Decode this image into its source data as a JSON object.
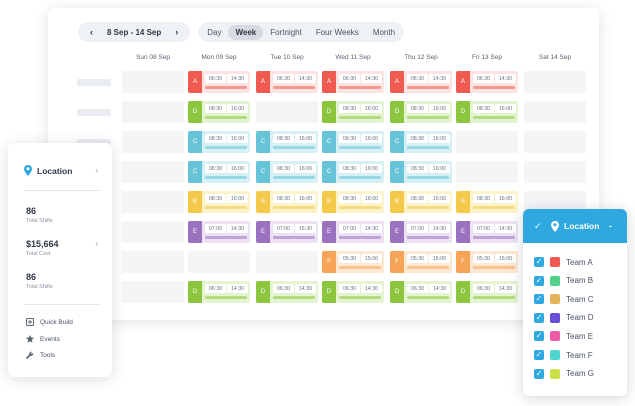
{
  "toolbar": {
    "prev_icon": "chevron-left-icon",
    "next_icon": "chevron-right-icon",
    "range": "8 Sep - 14 Sep",
    "views": [
      "Day",
      "Week",
      "Fortnight",
      "Four Weeks",
      "Month"
    ],
    "active_view": "Week"
  },
  "days": [
    "Sun 08 Sep",
    "Mon 09 Sep",
    "Tue 10 Sep",
    "Wed 11 Sep",
    "Thu 12 Sep",
    "Fri 13 Sep",
    "Sat 14 Sep"
  ],
  "teams": {
    "A": {
      "color": "#ef5b51",
      "light": "#fde3e1"
    },
    "B": {
      "color": "#f4c94a",
      "light": "#fdf3c8"
    },
    "C": {
      "color": "#66c3d8",
      "light": "#d6f0f6"
    },
    "D": {
      "color": "#8cc63f",
      "light": "#e4f3d0"
    },
    "E": {
      "color": "#9b72bf",
      "light": "#ece2f4"
    },
    "F": {
      "color": "#f6a455",
      "light": "#fde8d3"
    }
  },
  "rows": [
    [
      null,
      {
        "team": "A",
        "start": "06:30",
        "end": "14:30"
      },
      {
        "team": "A",
        "start": "06:30",
        "end": "14:30"
      },
      {
        "team": "A",
        "start": "06:30",
        "end": "14:30"
      },
      {
        "team": "A",
        "start": "06:30",
        "end": "14:30"
      },
      {
        "team": "A",
        "start": "06:30",
        "end": "14:30"
      },
      null
    ],
    [
      null,
      {
        "team": "D",
        "start": "08:30",
        "end": "16:00"
      },
      null,
      {
        "team": "D",
        "start": "08:30",
        "end": "16:00"
      },
      {
        "team": "D",
        "start": "08:30",
        "end": "16:00"
      },
      {
        "team": "D",
        "start": "08:30",
        "end": "16:00"
      },
      null
    ],
    [
      null,
      {
        "team": "C",
        "start": "08:30",
        "end": "16:00"
      },
      {
        "team": "C",
        "start": "08:30",
        "end": "16:00"
      },
      {
        "team": "C",
        "start": "08:30",
        "end": "16:00"
      },
      {
        "team": "C",
        "start": "08:30",
        "end": "16:00"
      },
      null,
      null
    ],
    [
      null,
      {
        "team": "C",
        "start": "08:30",
        "end": "16:00"
      },
      {
        "team": "C",
        "start": "08:30",
        "end": "16:00"
      },
      {
        "team": "C",
        "start": "08:30",
        "end": "16:00"
      },
      {
        "team": "C",
        "start": "08:30",
        "end": "16:00"
      },
      null,
      null
    ],
    [
      null,
      {
        "team": "B",
        "start": "08:30",
        "end": "16:00"
      },
      {
        "team": "B",
        "start": "08:30",
        "end": "16:00"
      },
      {
        "team": "B",
        "start": "08:30",
        "end": "16:00"
      },
      {
        "team": "B",
        "start": "08:30",
        "end": "16:00"
      },
      {
        "team": "B",
        "start": "08:30",
        "end": "16:00"
      },
      null
    ],
    [
      null,
      {
        "team": "E",
        "start": "07:00",
        "end": "14:30"
      },
      {
        "team": "E",
        "start": "07:00",
        "end": "15:30"
      },
      {
        "team": "E",
        "start": "07:00",
        "end": "14:30"
      },
      {
        "team": "E",
        "start": "07:00",
        "end": "14:30"
      },
      {
        "team": "E",
        "start": "07:00",
        "end": "14:30"
      },
      null
    ],
    [
      null,
      null,
      null,
      {
        "team": "F",
        "start": "05:30",
        "end": "15:00"
      },
      {
        "team": "F",
        "start": "05:30",
        "end": "15:00"
      },
      {
        "team": "F",
        "start": "05:30",
        "end": "15:00"
      },
      null
    ],
    [
      null,
      {
        "team": "D",
        "start": "06:30",
        "end": "14:30"
      },
      {
        "team": "D",
        "start": "06:30",
        "end": "14:30"
      },
      {
        "team": "D",
        "start": "06:30",
        "end": "14:30"
      },
      {
        "team": "D",
        "start": "06:30",
        "end": "14:30"
      },
      {
        "team": "D",
        "start": "06:30",
        "end": "14:30"
      },
      null
    ]
  ],
  "sidebar": {
    "location_label": "Location",
    "location_icon": "location-pin-icon",
    "stats": [
      {
        "value": "86",
        "label": "Total Shifts"
      },
      {
        "value": "$15,664",
        "label": "Total Cost"
      },
      {
        "value": "86",
        "label": "Total Shifts"
      }
    ],
    "tools": [
      {
        "label": "Quick Build",
        "icon": "quick-build-icon"
      },
      {
        "label": "Events",
        "icon": "star-icon"
      },
      {
        "label": "Tools",
        "icon": "wrench-icon"
      }
    ]
  },
  "team_filter": {
    "title": "Location",
    "items": [
      {
        "label": "Team A",
        "color": "#ef5b51",
        "checked": true
      },
      {
        "label": "Team B",
        "color": "#4fd18b",
        "checked": true
      },
      {
        "label": "Team C",
        "color": "#e3b45a",
        "checked": true
      },
      {
        "label": "Team D",
        "color": "#6a4fd6",
        "checked": true
      },
      {
        "label": "Team E",
        "color": "#ee5da8",
        "checked": true
      },
      {
        "label": "Team F",
        "color": "#4fd6d0",
        "checked": true
      },
      {
        "label": "Team G",
        "color": "#cde048",
        "checked": true
      }
    ]
  }
}
